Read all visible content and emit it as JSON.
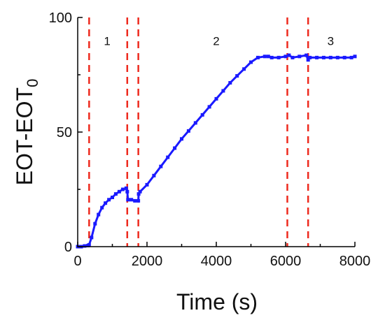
{
  "chart_data": {
    "type": "line",
    "title": "",
    "xlabel": "Time (s)",
    "ylabel": "EOT-EOT",
    "ylabel_subscript": "0",
    "xlim": [
      0,
      8000
    ],
    "ylim": [
      0,
      100
    ],
    "x_ticks": [
      0,
      2000,
      4000,
      6000,
      8000
    ],
    "x_tick_labels": [
      "0",
      "2000",
      "4000",
      "6000",
      "8000"
    ],
    "y_ticks": [
      0,
      50,
      100
    ],
    "y_tick_labels": [
      "0",
      "50",
      "100"
    ],
    "grid": false,
    "legend": "none",
    "colors": {
      "series": "#1a1aff",
      "markers": "#ee2a1e"
    },
    "vertical_markers": [
      330,
      1430,
      1750,
      6050,
      6650
    ],
    "phase_labels": [
      {
        "text": "1",
        "x": 850,
        "y": 88
      },
      {
        "text": "2",
        "x": 4000,
        "y": 88
      },
      {
        "text": "3",
        "x": 7300,
        "y": 88
      }
    ],
    "series": [
      {
        "x": [
          0,
          100,
          200,
          300,
          330,
          400,
          500,
          600,
          700,
          800,
          900,
          1000,
          1100,
          1200,
          1300,
          1400,
          1430,
          1450,
          1550,
          1650,
          1750,
          1760,
          1800,
          2000,
          2200,
          2400,
          2600,
          2800,
          3000,
          3200,
          3400,
          3600,
          3800,
          4000,
          4200,
          4400,
          4600,
          4800,
          5000,
          5200,
          5400,
          5500,
          5600,
          5800,
          6000,
          6100,
          6200,
          6400,
          6600,
          6650,
          6700,
          6900,
          7100,
          7300,
          7500,
          7700,
          7900,
          8000
        ],
        "y": [
          0,
          0,
          0.3,
          0.5,
          0.8,
          4,
          10,
          14,
          17,
          19,
          20.5,
          21.5,
          23,
          24,
          25,
          25.5,
          24,
          20.5,
          20.5,
          20,
          20,
          23,
          24,
          27,
          31,
          35,
          39,
          43,
          47,
          50.5,
          54,
          57.5,
          61,
          64.5,
          68,
          71.5,
          74.5,
          77.5,
          80.5,
          82.5,
          83,
          83,
          82.5,
          82.5,
          83,
          83.5,
          82.5,
          83,
          83.5,
          81.5,
          82.5,
          82.5,
          82.5,
          82.5,
          82.5,
          82.5,
          82.5,
          83
        ]
      }
    ]
  }
}
